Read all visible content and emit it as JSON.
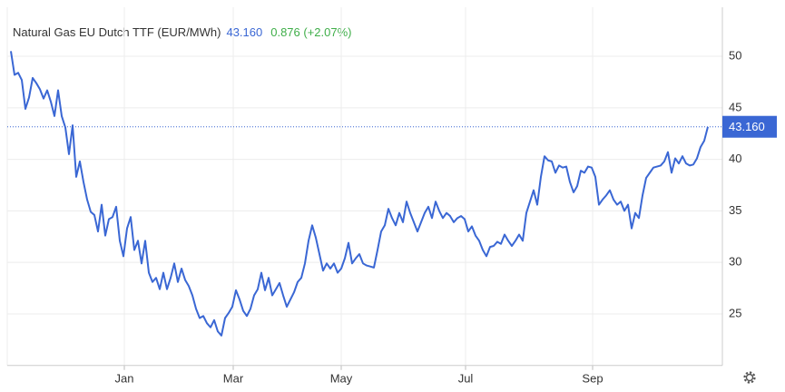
{
  "chart_data": {
    "type": "line",
    "last_price": "43.160",
    "change": "0.876 (+2.07%)",
    "x": [
      0,
      2,
      4,
      6,
      8,
      10,
      12,
      14,
      16,
      18,
      20,
      22,
      24,
      26,
      28,
      30,
      32,
      34,
      36,
      38,
      40,
      42,
      44,
      46,
      48,
      50,
      52,
      54,
      56,
      58,
      60,
      62,
      64,
      66,
      68,
      70,
      72,
      74,
      76,
      78,
      80,
      82,
      84,
      86,
      88,
      90,
      92,
      94,
      96,
      98,
      100,
      102,
      104,
      106,
      108,
      110,
      112,
      114,
      116,
      118,
      120,
      122,
      124,
      126,
      128,
      130,
      132,
      134,
      136,
      138,
      140,
      142,
      144,
      146,
      148,
      150,
      152,
      154,
      156,
      158,
      160,
      162,
      164,
      166,
      168,
      170,
      172,
      174,
      176,
      178,
      180,
      182,
      184,
      186,
      188,
      190,
      192,
      194,
      196,
      198,
      200,
      202,
      204,
      206,
      208,
      210,
      212,
      214,
      216,
      218,
      220,
      222,
      224,
      226,
      228,
      230,
      232,
      234,
      236,
      238,
      240,
      242,
      244,
      246,
      248,
      250,
      252,
      254,
      256,
      258,
      260,
      262,
      264,
      266,
      268,
      270,
      272,
      274,
      276,
      278,
      280,
      282,
      284,
      286,
      288,
      290,
      292,
      294,
      296,
      298,
      300,
      302,
      304,
      306,
      308,
      310,
      312,
      314,
      316,
      318,
      320,
      322,
      324,
      326,
      328,
      330,
      332,
      334,
      336,
      338,
      340,
      342,
      344,
      346,
      348,
      350,
      352,
      354,
      356,
      358,
      360,
      362,
      364,
      366,
      368,
      370,
      372,
      374,
      376,
      378,
      380,
      382,
      384
    ],
    "series": [
      {
        "name": "Natural Gas EU Dutch TTF (EUR/MWh)",
        "color": "#3a67d4",
        "values": [
          50.5,
          48.2,
          48.4,
          47.7,
          44.9,
          46,
          47.9,
          47.4,
          46.8,
          45.9,
          46.7,
          45.6,
          44.2,
          46.7,
          44.2,
          43.1,
          40.5,
          43.3,
          38.3,
          39.8,
          37.8,
          36.1,
          34.9,
          34.6,
          33,
          35.6,
          32.6,
          34.2,
          34.4,
          35.4,
          32.1,
          30.6,
          33.3,
          34.4,
          31.2,
          32.1,
          29.9,
          32.1,
          29,
          28.1,
          28.5,
          27.4,
          29,
          27.4,
          28.5,
          29.9,
          28.1,
          29.4,
          28.3,
          27.7,
          26.8,
          25.5,
          24.6,
          24.8,
          24.1,
          23.7,
          24.4,
          23.3,
          22.9,
          24.6,
          25.1,
          25.7,
          27.3,
          26.4,
          25.3,
          24.8,
          25.5,
          26.8,
          27.4,
          29,
          27.3,
          28.5,
          26.8,
          27.4,
          28,
          26.8,
          25.7,
          26.4,
          27.1,
          28.1,
          28.5,
          29.9,
          32.1,
          33.6,
          32.4,
          30.8,
          29.2,
          29.9,
          29.4,
          29.9,
          29,
          29.4,
          30.4,
          31.9,
          29.9,
          30.4,
          30.8,
          29.9,
          29.7,
          29.6,
          29.5,
          31.2,
          33,
          33.6,
          35.2,
          34.3,
          33.6,
          34.8,
          33.9,
          35.9,
          34.8,
          33.9,
          33,
          33.9,
          34.8,
          35.4,
          34.3,
          35.9,
          35,
          34.3,
          34.8,
          34.5,
          33.9,
          34.3,
          34.5,
          34.2,
          33,
          33.5,
          32.6,
          32.1,
          31.2,
          30.6,
          31.5,
          31.6,
          32,
          31.8,
          32.7,
          32.1,
          31.6,
          32.1,
          32.7,
          32.1,
          34.8,
          35.9,
          37,
          35.6,
          38.3,
          40.3,
          39.9,
          39.8,
          38.7,
          39.4,
          39.2,
          39.3,
          37.8,
          36.8,
          37.4,
          38.9,
          38.7,
          39.3,
          39.2,
          38.3,
          35.6,
          36.1,
          36.5,
          37,
          36.1,
          35.6,
          35.9,
          35,
          35.6,
          33.3,
          34.8,
          34.3,
          36.5,
          38.2,
          38.7,
          39.2,
          39.3,
          39.4,
          39.8,
          40.7,
          38.7,
          40.1,
          39.6,
          40.3,
          39.6,
          39.4,
          39.5,
          40.1,
          41.2,
          41.8,
          43.16
        ]
      }
    ],
    "xlim": [
      0,
      392
    ],
    "xticks": [
      {
        "value": 62.5,
        "label": "Jan"
      },
      {
        "value": 122.5,
        "label": "Mar"
      },
      {
        "value": 182,
        "label": "May"
      },
      {
        "value": 250.5,
        "label": "Jul"
      },
      {
        "value": 320.5,
        "label": "Sep"
      }
    ],
    "ylim": [
      20,
      55
    ],
    "yticks": [
      25,
      30,
      35,
      40,
      45,
      50
    ],
    "grid": true,
    "price_color": "#3a67d4",
    "change_color": "#3fae49"
  }
}
